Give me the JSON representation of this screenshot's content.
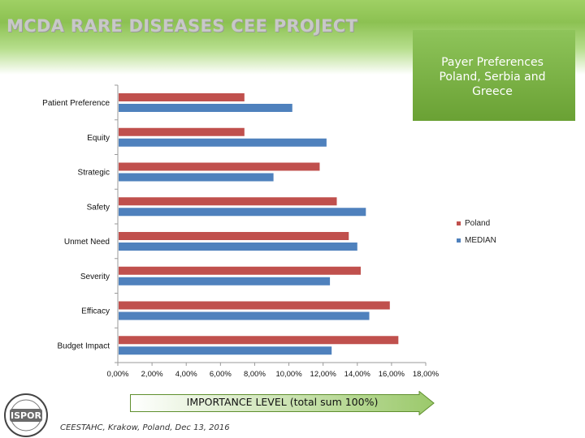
{
  "header": {
    "title": "MCDA RARE DISEASES CEE PROJECT"
  },
  "callout": {
    "lines": [
      "Payer Preferences",
      "Poland, Serbia and",
      "Greece"
    ]
  },
  "colors": {
    "poland": "#c0504d",
    "median": "#4f81bd"
  },
  "chart_data": {
    "type": "bar",
    "orientation": "horizontal",
    "categories": [
      "Patient Preference",
      "Equity",
      "Strategic",
      "Safety",
      "Unmet Need",
      "Severity",
      "Efficacy",
      "Budget Impact"
    ],
    "series": [
      {
        "name": "Poland",
        "values": [
          7.4,
          7.4,
          11.8,
          12.8,
          13.5,
          14.2,
          15.9,
          16.4
        ]
      },
      {
        "name": "MEDIAN",
        "values": [
          10.2,
          12.2,
          9.1,
          14.5,
          14.0,
          12.4,
          14.7,
          12.5
        ]
      }
    ],
    "xlim": [
      0,
      18
    ],
    "xticks": [
      0,
      2,
      4,
      6,
      8,
      10,
      12,
      14,
      16,
      18
    ],
    "xtick_labels": [
      "0,00%",
      "2,00%",
      "4,00%",
      "6,00%",
      "8,00%",
      "10,00%",
      "12,00%",
      "14,00%",
      "16,00%",
      "18,00%"
    ],
    "xlabel": "IMPORTANCE LEVEL (total sum 100%)",
    "legend_position": "right"
  },
  "logo": {
    "text": "ISPOR"
  },
  "footer": {
    "text": "CEESTAHC, Krakow, Poland, Dec 13, 2016"
  }
}
